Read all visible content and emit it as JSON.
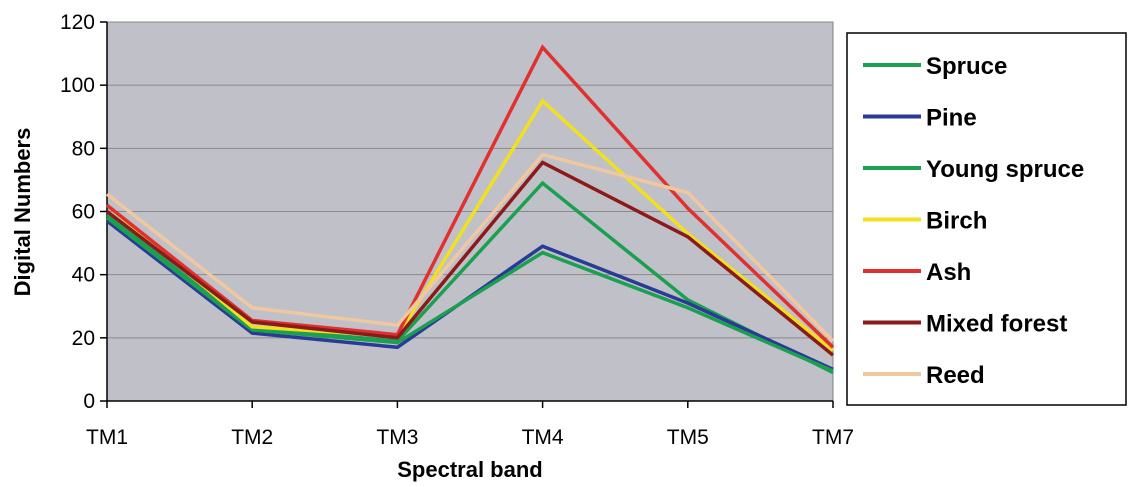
{
  "chart_data": {
    "type": "line",
    "title": "",
    "xlabel": "Spectral band",
    "ylabel": "Digital Numbers",
    "categories": [
      "TM1",
      "TM2",
      "TM3",
      "TM4",
      "TM5",
      "TM7"
    ],
    "ylim": [
      0,
      120
    ],
    "yticks": [
      0,
      20,
      40,
      60,
      80,
      100,
      120
    ],
    "grid": true,
    "plot_background": "#c0c0c8",
    "legend_position": "right",
    "series": [
      {
        "name": "Spruce",
        "color": "#1aa050",
        "values": [
          59,
          23,
          19,
          69,
          32,
          9
        ]
      },
      {
        "name": "Pine",
        "color": "#2a3a96",
        "values": [
          57,
          21.5,
          17,
          49,
          31,
          10
        ]
      },
      {
        "name": "Young spruce",
        "color": "#1aa050",
        "values": [
          58,
          22.5,
          18.5,
          47,
          29.5,
          9.5
        ]
      },
      {
        "name": "Birch",
        "color": "#f0e020",
        "values": [
          62,
          23.5,
          20.5,
          95,
          53,
          16
        ]
      },
      {
        "name": "Ash",
        "color": "#e03030",
        "values": [
          62,
          25.5,
          21,
          112,
          61,
          17
        ]
      },
      {
        "name": "Mixed forest",
        "color": "#8b1a1a",
        "values": [
          60,
          25,
          20,
          75.5,
          52,
          14.5
        ]
      },
      {
        "name": "Reed",
        "color": "#f0c8a0",
        "values": [
          65.5,
          29.5,
          24,
          78,
          66,
          19
        ]
      }
    ]
  }
}
